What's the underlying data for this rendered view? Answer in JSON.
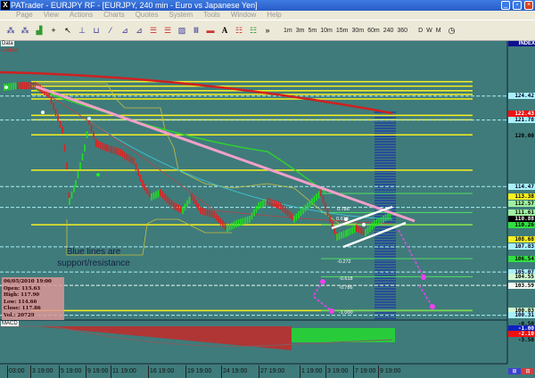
{
  "window": {
    "title": "PATrader - EURJPY RF - [EURJPY, 240 min - Euro vs Japanese Yen]",
    "app_icon": "X"
  },
  "menu": [
    "Page",
    "View",
    "Actions",
    "Charts",
    "Quotes",
    "System",
    "Tools",
    "Window",
    "Help"
  ],
  "toolbar": {
    "timeframes": [
      "1m",
      "3m",
      "5m",
      "10m",
      "15m",
      "30m",
      "60m",
      "240",
      "360",
      "D",
      "W",
      "M"
    ]
  },
  "chart": {
    "data_tag": "Data",
    "locked": "Locked",
    "index_label": "INDEX",
    "macd_label": "MACD",
    "note": [
      "Blue lines are",
      "support/resistance"
    ],
    "info": {
      "date": "06/05/2010 19:00",
      "open": "Open: 115.63",
      "high": "High: 117.90",
      "low": "Low: 114.66",
      "close": "Close: 117.86",
      "vol": "Vol.: 20729"
    },
    "price_labels": [
      {
        "v": "124.42",
        "bg": "#a8f0f8",
        "fg": "#002"
      },
      {
        "v": "122.43",
        "bg": "#f01010",
        "fg": "#fff"
      },
      {
        "v": "121.78",
        "bg": "#a8f0f8",
        "fg": "#002"
      },
      {
        "v": "120.00",
        "bg": "transparent",
        "fg": "#000"
      },
      {
        "v": "114.47",
        "bg": "#a8f0f8",
        "fg": "#002"
      },
      {
        "v": "113.38",
        "bg": "#f8f020",
        "fg": "#000"
      },
      {
        "v": "112.57",
        "bg": "#a0f0a0",
        "fg": "#000"
      },
      {
        "v": "111.61",
        "bg": "#a0f0a0",
        "fg": "#000"
      },
      {
        "v": "110.88",
        "bg": "#000",
        "fg": "#fff"
      },
      {
        "v": "110.26",
        "bg": "#30e040",
        "fg": "#000"
      },
      {
        "v": "108.68",
        "bg": "#f8f020",
        "fg": "#000"
      },
      {
        "v": "107.83",
        "bg": "#a8f0f8",
        "fg": "#002"
      },
      {
        "v": "106.54",
        "bg": "#30e040",
        "fg": "#000"
      },
      {
        "v": "105.07",
        "bg": "#a8f0f8",
        "fg": "#002"
      },
      {
        "v": "104.55",
        "bg": "#d0f8d0",
        "fg": "#000"
      },
      {
        "v": "103.59",
        "bg": "#f0f8f0",
        "fg": "#000"
      },
      {
        "v": "100.83",
        "bg": "#d0f8d0",
        "fg": "#000"
      },
      {
        "v": "100.31",
        "bg": "#a8f0f8",
        "fg": "#002"
      }
    ],
    "macd_labels": [
      {
        "v": "-0.50",
        "bg": "transparent",
        "fg": "#000"
      },
      {
        "v": "-1.00",
        "bg": "#1020c0",
        "fg": "#fff"
      },
      {
        "v": "-2.10",
        "bg": "#f01010",
        "fg": "#fff"
      },
      {
        "v": "-3.50",
        "bg": "transparent",
        "fg": "#000"
      }
    ],
    "fib_labels": [
      "0.786",
      "0.618",
      "-0.272",
      "-0.618",
      "-0.786",
      "-1.000"
    ],
    "time_labels": [
      "03:00",
      "3 19:00",
      "5 19:00",
      "9 19:00",
      "11 19:00",
      "16 19:00",
      "19 19:00",
      "24 19:00",
      "27 19:00",
      "1 19:00",
      "3 19:00",
      "7 19:00",
      "9 19:00"
    ],
    "colors": {
      "bg": "#3f7b7b",
      "support": "#a8f0f8",
      "fib": "#f8f020",
      "trendline": "#f0a0c8",
      "ma_long": "#d02020",
      "arrows": "#f040f0"
    }
  }
}
